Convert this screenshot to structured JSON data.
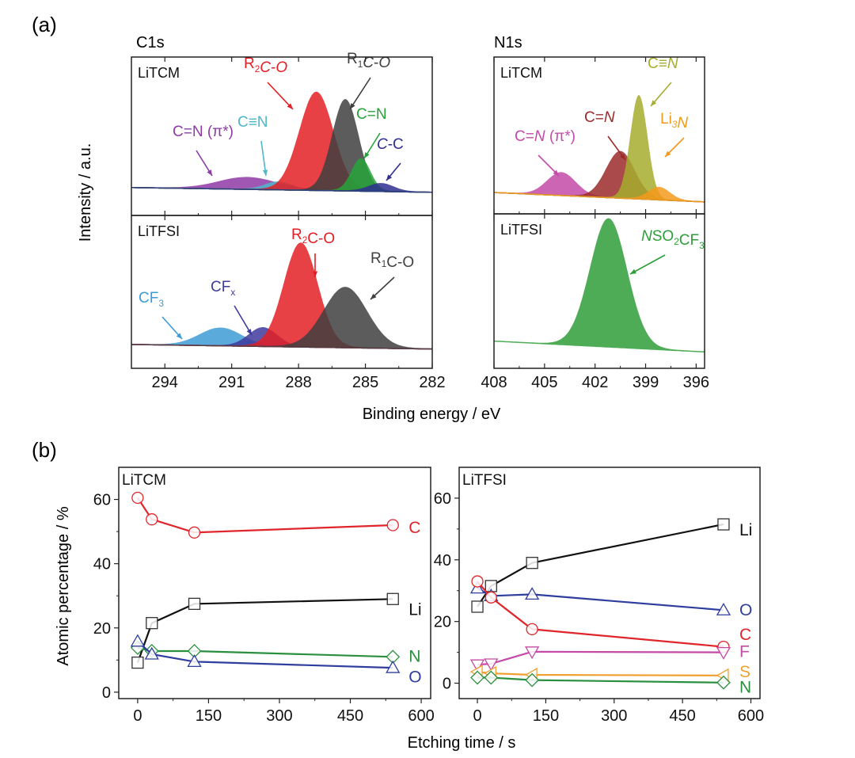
{
  "panel_labels": {
    "a": "(a)",
    "b": "(b)"
  },
  "xps": {
    "ylabel": "Intensity / a.u.",
    "xlabel": "Binding energy / eV",
    "c1s_title": "C1s",
    "n1s_title": "N1s"
  },
  "composition": {
    "ylabel": "Atomic percentage / %",
    "xlabel": "Etching time / s"
  },
  "chart_data": [
    {
      "type": "area",
      "id": "c1s-litcm",
      "title": "C1s",
      "sample": "LiTCM",
      "xlabel": "Binding energy / eV",
      "ylabel": "Intensity / a.u.",
      "xlim": [
        295.5,
        282
      ],
      "xticks": [
        294,
        291,
        288,
        285,
        282
      ],
      "peaks": [
        {
          "label": "C=N (π*)",
          "center": 290.3,
          "fwhm": 3.0,
          "height": 0.12,
          "color": "#8e3aa6",
          "label_parts": [
            [
              "C=N (π*)",
              "",
              "n"
            ]
          ]
        },
        {
          "label": "C≡N",
          "center": 288.9,
          "fwhm": 1.4,
          "height": 0.08,
          "color": "#4fb7c9",
          "label_parts": [
            [
              "C≡N",
              "",
              "n"
            ]
          ]
        },
        {
          "label": "R2C-O",
          "center": 287.2,
          "fwhm": 1.8,
          "height": 1.0,
          "color": "#e31e24",
          "label_parts": [
            [
              "R",
              "",
              "n"
            ],
            [
              "2",
              "sub",
              "n"
            ],
            [
              "C",
              "",
              "i"
            ],
            [
              "-",
              "",
              "n"
            ],
            [
              "O",
              "",
              "i"
            ]
          ]
        },
        {
          "label": "R1C-O",
          "center": 285.9,
          "fwhm": 1.4,
          "height": 0.93,
          "color": "#3f3f3f",
          "label_parts": [
            [
              "R",
              "",
              "n"
            ],
            [
              "1",
              "sub",
              "n"
            ],
            [
              "C",
              "",
              "i"
            ],
            [
              "-",
              "",
              "n"
            ],
            [
              "O",
              "",
              "i"
            ]
          ]
        },
        {
          "label": "C=N",
          "center": 285.2,
          "fwhm": 1.0,
          "height": 0.33,
          "color": "#27a33a",
          "label_parts": [
            [
              "C=N",
              "",
              "n"
            ]
          ]
        },
        {
          "label": "C-C",
          "center": 284.3,
          "fwhm": 1.3,
          "height": 0.08,
          "color": "#2e2f8f",
          "label_parts": [
            [
              "C",
              "",
              "i"
            ],
            [
              "-C",
              "",
              "n"
            ]
          ]
        }
      ]
    },
    {
      "type": "area",
      "id": "c1s-litfsi",
      "sample": "LiTFSI",
      "xlim": [
        295.5,
        282
      ],
      "xticks": [
        294,
        291,
        288,
        285,
        282
      ],
      "xticklabels": [
        "294",
        "291",
        "288",
        "285",
        "282"
      ],
      "peaks": [
        {
          "label": "CF3",
          "center": 291.5,
          "fwhm": 2.2,
          "height": 0.17,
          "color": "#3d9bd6",
          "label_parts": [
            [
              "CF",
              "",
              "n"
            ],
            [
              "3",
              "sub",
              "n"
            ]
          ]
        },
        {
          "label": "CFx",
          "center": 289.6,
          "fwhm": 1.5,
          "height": 0.18,
          "color": "#3f3a9b",
          "label_parts": [
            [
              "CF",
              "",
              "n"
            ],
            [
              "x",
              "sub",
              "n"
            ]
          ]
        },
        {
          "label": "R2C-O",
          "center": 287.9,
          "fwhm": 1.8,
          "height": 1.0,
          "color": "#e31e24",
          "label_parts": [
            [
              "R",
              "",
              "n"
            ],
            [
              "2",
              "sub",
              "n"
            ],
            [
              "C",
              "",
              "n"
            ],
            [
              "-O",
              "",
              "n"
            ]
          ]
        },
        {
          "label": "R1C-O",
          "center": 285.9,
          "fwhm": 2.3,
          "height": 0.58,
          "color": "#3f3f3f",
          "label_parts": [
            [
              "R",
              "",
              "n"
            ],
            [
              "1",
              "sub",
              "n"
            ],
            [
              "C",
              "",
              "n"
            ],
            [
              "-O",
              "",
              "n"
            ]
          ]
        }
      ]
    },
    {
      "type": "area",
      "id": "n1s-litcm",
      "title": "N1s",
      "sample": "LiTCM",
      "xlim": [
        408,
        395.5
      ],
      "xticks": [
        408,
        405,
        402,
        399,
        396
      ],
      "peaks": [
        {
          "label": "C=N (π*)",
          "center": 404.0,
          "fwhm": 2.0,
          "height": 0.22,
          "color": "#c44aa8",
          "label_parts": [
            [
              "C=",
              "",
              "n"
            ],
            [
              "N",
              "",
              "i"
            ],
            [
              " (π*)",
              "",
              "n"
            ]
          ]
        },
        {
          "label": "C=N",
          "center": 400.5,
          "fwhm": 2.0,
          "height": 0.45,
          "color": "#9b2a2a",
          "label_parts": [
            [
              "C=",
              "",
              "n"
            ],
            [
              "N",
              "",
              "i"
            ]
          ]
        },
        {
          "label": "C≡N",
          "center": 399.4,
          "fwhm": 1.2,
          "height": 1.0,
          "color": "#a7ad2e",
          "label_parts": [
            [
              "C≡",
              "",
              "n"
            ],
            [
              "N",
              "",
              "i"
            ]
          ]
        },
        {
          "label": "Li3N",
          "center": 398.2,
          "fwhm": 1.5,
          "height": 0.12,
          "color": "#f39a1c",
          "label_parts": [
            [
              "Li",
              "",
              "n"
            ],
            [
              "3",
              "sub",
              "i"
            ],
            [
              "N",
              "",
              "i"
            ]
          ]
        }
      ]
    },
    {
      "type": "area",
      "id": "n1s-litfsi",
      "sample": "LiTFSI",
      "xlim": [
        408,
        395.5
      ],
      "xticks": [
        408,
        405,
        402,
        399,
        396
      ],
      "xticklabels": [
        "408",
        "405",
        "402",
        "399",
        "396"
      ],
      "peaks": [
        {
          "label": "NSO2CF3",
          "center": 401.2,
          "fwhm": 2.6,
          "height": 1.0,
          "color": "#2f9e3a",
          "label_parts": [
            [
              "N",
              "",
              "i"
            ],
            [
              "SO",
              "",
              "n"
            ],
            [
              "2",
              "sub",
              "n"
            ],
            [
              "CF",
              "",
              "n"
            ],
            [
              "3",
              "sub",
              "n"
            ]
          ]
        }
      ]
    },
    {
      "type": "line",
      "id": "comp-litcm",
      "sample": "LiTCM",
      "xlabel": "Etching time / s",
      "ylabel": "Atomic percentage / %",
      "xlim": [
        -40,
        620
      ],
      "ylim": [
        -2,
        70
      ],
      "xticks": [
        0,
        150,
        300,
        450,
        600
      ],
      "xticklabels": [
        "0",
        "150",
        "300",
        "450",
        "600"
      ],
      "yticks": [
        0,
        20,
        40,
        60
      ],
      "yticklabels": [
        "0",
        "20",
        "40",
        "60"
      ],
      "x": [
        0,
        30,
        120,
        540
      ],
      "series": [
        {
          "name": "C",
          "marker": "circle",
          "color": "#e0252b",
          "values": [
            60.5,
            53.8,
            49.7,
            52.0
          ]
        },
        {
          "name": "Li",
          "marker": "square",
          "color": "#111111",
          "values": [
            9.2,
            21.5,
            27.5,
            29.0
          ]
        },
        {
          "name": "N",
          "marker": "diamond",
          "color": "#2a8f3e",
          "values": [
            13.8,
            12.8,
            12.8,
            11.0
          ]
        },
        {
          "name": "O",
          "marker": "triangle-up",
          "color": "#2f3e9e",
          "values": [
            15.8,
            11.8,
            9.5,
            7.6
          ]
        }
      ],
      "labels": [
        {
          "text": "C",
          "y": 51.5
        },
        {
          "text": "Li",
          "y": 26.0
        },
        {
          "text": "N",
          "y": 11.5
        },
        {
          "text": "O",
          "y": 5.0
        }
      ]
    },
    {
      "type": "line",
      "id": "comp-litfsi",
      "sample": "LiTFSI",
      "xlim": [
        -40,
        620
      ],
      "ylim": [
        -5,
        70
      ],
      "xticks": [
        0,
        150,
        300,
        450,
        600
      ],
      "xticklabels": [
        "0",
        "150",
        "300",
        "450",
        "600"
      ],
      "yticks": [
        0,
        20,
        40,
        60
      ],
      "yticklabels": [
        "0",
        "20",
        "40",
        "60"
      ],
      "x": [
        0,
        30,
        120,
        540
      ],
      "series": [
        {
          "name": "Li",
          "marker": "square",
          "color": "#111111",
          "values": [
            24.8,
            31.5,
            39.0,
            51.5
          ]
        },
        {
          "name": "O",
          "marker": "triangle-up",
          "color": "#2f3e9e",
          "values": [
            30.8,
            28.3,
            28.8,
            23.7
          ]
        },
        {
          "name": "C",
          "marker": "circle",
          "color": "#e0252b",
          "values": [
            33.0,
            27.8,
            17.5,
            11.8
          ]
        },
        {
          "name": "F",
          "marker": "triangle-down",
          "color": "#c54aa8",
          "values": [
            6.0,
            6.3,
            10.2,
            10.0
          ]
        },
        {
          "name": "S",
          "marker": "triangle-left",
          "color": "#f0a030",
          "values": [
            3.7,
            3.2,
            2.7,
            2.5
          ]
        },
        {
          "name": "N",
          "marker": "diamond",
          "color": "#2a8f3e",
          "values": [
            1.8,
            1.8,
            1.0,
            0.2
          ]
        }
      ],
      "labels": [
        {
          "text": "Li",
          "y": 50.0
        },
        {
          "text": "O",
          "y": 24.0
        },
        {
          "text": "C",
          "y": 16.0
        },
        {
          "text": "F",
          "y": 10.5
        },
        {
          "text": "S",
          "y": 4.0
        },
        {
          "text": "N",
          "y": -1.0
        }
      ]
    }
  ]
}
